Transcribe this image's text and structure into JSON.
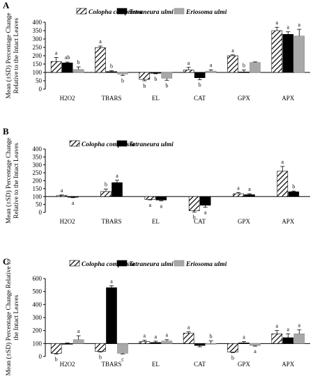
{
  "colors": {
    "colopha": "hatched #ffffff/#000000",
    "tetraneura": "#000000",
    "eriosoma": "#a8a8a8"
  },
  "chart_data": [
    {
      "panel": "A",
      "type": "bar",
      "ylabel": "Mean (±SD) Percentage Change Relative to the Intact Leaves",
      "ylim": [
        0,
        400
      ],
      "yticks": [
        0,
        50,
        100,
        150,
        200,
        250,
        300,
        350,
        400
      ],
      "baseline": 100,
      "categories": [
        "H2O2",
        "TBARS",
        "EL",
        "CAT",
        "GPX",
        "APX"
      ],
      "legend": "top",
      "series": [
        {
          "name": "Colopha compressa",
          "style": "hatch",
          "values": [
            165,
            248,
            58,
            115,
            200,
            350
          ],
          "errors": [
            25,
            10,
            8,
            15,
            5,
            20
          ],
          "letters": [
            "a",
            "a",
            "b",
            "a",
            "a",
            "a"
          ]
        },
        {
          "name": "Tetraneura ulmi",
          "style": "black",
          "values": [
            157,
            105,
            95,
            68,
            103,
            328
          ],
          "errors": [
            5,
            5,
            3,
            12,
            12,
            15
          ],
          "letters": [
            "ab",
            "b",
            "b",
            "b",
            "b",
            "a"
          ]
        },
        {
          "name": "Eriosoma ulmi",
          "style": "gray",
          "values": [
            118,
            90,
            65,
            108,
            160,
            318
          ],
          "errors": [
            15,
            8,
            12,
            8,
            3,
            40
          ],
          "letters": [
            "b",
            "b",
            "b",
            "a",
            "",
            "a"
          ]
        }
      ]
    },
    {
      "panel": "B",
      "type": "bar",
      "ylabel": "Mean (±SD) Percentage Change Relative to the Intact Leaves",
      "ylim": [
        0,
        400
      ],
      "yticks": [
        0,
        50,
        100,
        150,
        200,
        250,
        300,
        350,
        400
      ],
      "baseline": 100,
      "categories": [
        "H2O2",
        "TBARS",
        "EL",
        "CAT",
        "GPX",
        "APX"
      ],
      "legend": "top",
      "series": [
        {
          "name": "Colopha compressa",
          "style": "hatch",
          "values": [
            107,
            132,
            82,
            10,
            118,
            260
          ],
          "errors": [
            3,
            15,
            3,
            8,
            8,
            30
          ],
          "letters": [
            "a",
            "b",
            "a",
            "b",
            "a",
            "a"
          ]
        },
        {
          "name": "Tetraneura ulmi",
          "style": "black",
          "values": [
            96,
            188,
            78,
            45,
            112,
            130
          ],
          "errors": [
            3,
            15,
            5,
            12,
            6,
            5
          ],
          "letters": [
            "a",
            "a",
            "a",
            "a",
            "a",
            "b"
          ]
        }
      ]
    },
    {
      "panel": "C",
      "type": "bar",
      "ylabel": "Mean (±SD) Percentage Change Relative to the Intact Leaves",
      "ylim": [
        0,
        600
      ],
      "yticks": [
        0,
        100,
        200,
        300,
        400,
        500,
        600
      ],
      "baseline": 100,
      "categories": [
        "H2O2",
        "TBARS",
        "EL",
        "CAT",
        "GPX",
        "APX"
      ],
      "legend": "top",
      "series": [
        {
          "name": "Colopha compressa",
          "style": "hatch",
          "values": [
            25,
            40,
            115,
            180,
            35,
            175
          ],
          "errors": [
            5,
            5,
            10,
            10,
            5,
            25
          ],
          "letters": [
            "b",
            "b",
            "a",
            "a",
            "b",
            "a"
          ]
        },
        {
          "name": "Tetraneura ulmi",
          "style": "black",
          "values": [
            100,
            530,
            108,
            85,
            105,
            145
          ],
          "errors": [
            5,
            15,
            10,
            10,
            10,
            30
          ],
          "letters": [
            "",
            "a",
            "a",
            "",
            "a",
            "a"
          ]
        },
        {
          "name": "Eriosoma ulmi",
          "style": "gray",
          "values": [
            130,
            25,
            120,
            100,
            85,
            175
          ],
          "errors": [
            30,
            5,
            10,
            20,
            5,
            30
          ],
          "letters": [
            "a",
            "c",
            "a",
            "b",
            "a",
            "a"
          ]
        }
      ]
    }
  ]
}
